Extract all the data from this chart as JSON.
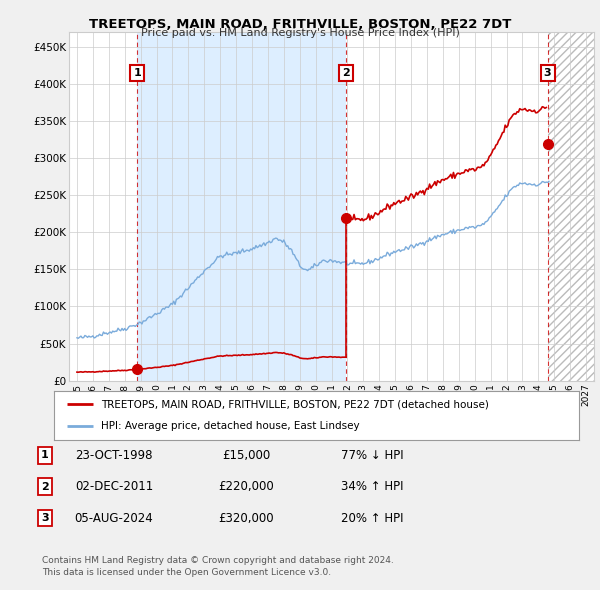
{
  "title": "TREETOPS, MAIN ROAD, FRITHVILLE, BOSTON, PE22 7DT",
  "subtitle": "Price paid vs. HM Land Registry's House Price Index (HPI)",
  "legend_label_red": "TREETOPS, MAIN ROAD, FRITHVILLE, BOSTON, PE22 7DT (detached house)",
  "legend_label_blue": "HPI: Average price, detached house, East Lindsey",
  "footnote1": "Contains HM Land Registry data © Crown copyright and database right 2024.",
  "footnote2": "This data is licensed under the Open Government Licence v3.0.",
  "table": [
    {
      "num": "1",
      "date": "23-OCT-1998",
      "price": "£15,000",
      "hpi": "77% ↓ HPI"
    },
    {
      "num": "2",
      "date": "02-DEC-2011",
      "price": "£220,000",
      "hpi": "34% ↑ HPI"
    },
    {
      "num": "3",
      "date": "05-AUG-2024",
      "price": "£320,000",
      "hpi": "20% ↑ HPI"
    }
  ],
  "red_color": "#cc0000",
  "blue_color": "#7aabdb",
  "shade_color": "#ddeeff",
  "hatch_color": "#cccccc",
  "ylim": [
    0,
    470000
  ],
  "xlim": [
    1994.5,
    2027.5
  ],
  "yticks": [
    0,
    50000,
    100000,
    150000,
    200000,
    250000,
    300000,
    350000,
    400000,
    450000
  ],
  "ytick_labels": [
    "£0",
    "£50K",
    "£100K",
    "£150K",
    "£200K",
    "£250K",
    "£300K",
    "£350K",
    "£400K",
    "£450K"
  ],
  "xticks": [
    1995,
    1996,
    1997,
    1998,
    1999,
    2000,
    2001,
    2002,
    2003,
    2004,
    2005,
    2006,
    2007,
    2008,
    2009,
    2010,
    2011,
    2012,
    2013,
    2014,
    2015,
    2016,
    2017,
    2018,
    2019,
    2020,
    2021,
    2022,
    2023,
    2024,
    2025,
    2026,
    2027
  ],
  "bg_color": "#f0f0f0",
  "plot_bg_color": "#ffffff",
  "sale_years": [
    1998.8,
    2011.917,
    2024.583
  ],
  "sale_prices": [
    15000,
    220000,
    320000
  ]
}
